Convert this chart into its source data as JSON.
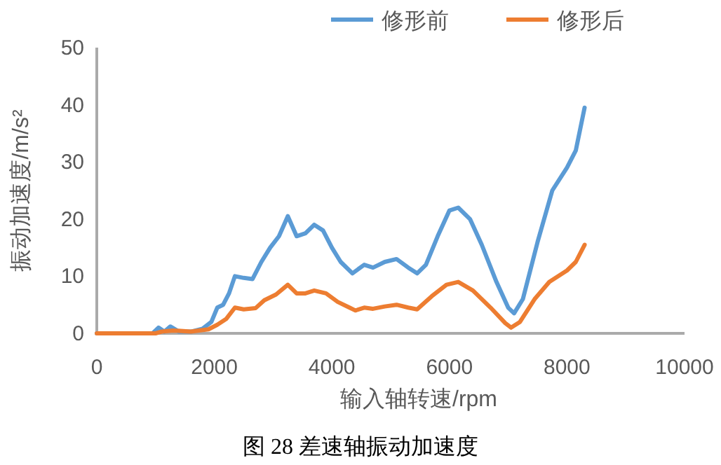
{
  "chart_data": {
    "type": "line",
    "title": "图 28 差速轴振动加速度",
    "xlabel": "输入轴转速/rpm",
    "ylabel": "振动加速度/m/s²",
    "xlim": [
      0,
      10000
    ],
    "xticks": [
      0,
      2000,
      4000,
      6000,
      8000,
      10000
    ],
    "ylim": [
      0,
      50
    ],
    "yticks": [
      0,
      10,
      20,
      30,
      40,
      50
    ],
    "grid": false,
    "legend": "top right",
    "marker": "none",
    "line_style": "solid",
    "series": [
      {
        "name": "修形前",
        "color": "#5b9bd5",
        "x": [
          0,
          800,
          950,
          1050,
          1150,
          1250,
          1400,
          1600,
          1800,
          1950,
          2050,
          2150,
          2250,
          2350,
          2500,
          2650,
          2800,
          2950,
          3100,
          3250,
          3400,
          3550,
          3700,
          3850,
          4000,
          4150,
          4350,
          4550,
          4700,
          4900,
          5100,
          5300,
          5450,
          5600,
          5800,
          6000,
          6150,
          6350,
          6550,
          6800,
          7000,
          7100,
          7250,
          7500,
          7750,
          8000,
          8150,
          8300
        ],
        "values": [
          0,
          0,
          0,
          1,
          0.3,
          1.2,
          0.3,
          0.3,
          0.8,
          2,
          4.5,
          5,
          7,
          10,
          9.7,
          9.5,
          12.5,
          15,
          17,
          20.5,
          17,
          17.5,
          19,
          18,
          15,
          12.5,
          10.5,
          12,
          11.5,
          12.5,
          13,
          11.5,
          10.5,
          12,
          17,
          21.5,
          22,
          20,
          15.5,
          9,
          4.5,
          3.5,
          6,
          16,
          25,
          29,
          32,
          39.5
        ]
      },
      {
        "name": "修形后",
        "color": "#ed7d31",
        "x": [
          0,
          1000,
          1100,
          1300,
          1600,
          1900,
          2050,
          2200,
          2350,
          2500,
          2700,
          2850,
          3050,
          3250,
          3400,
          3550,
          3700,
          3900,
          4100,
          4300,
          4400,
          4550,
          4700,
          4900,
          5100,
          5300,
          5450,
          5700,
          5950,
          6150,
          6400,
          6700,
          6950,
          7050,
          7200,
          7450,
          7700,
          8000,
          8150,
          8300
        ],
        "values": [
          0,
          0,
          0.3,
          0.5,
          0.3,
          0.7,
          1.5,
          2.5,
          4.5,
          4.2,
          4.4,
          5.8,
          6.8,
          8.5,
          7,
          7,
          7.5,
          7,
          5.5,
          4.5,
          4,
          4.5,
          4.3,
          4.7,
          5,
          4.5,
          4.2,
          6.5,
          8.5,
          9,
          7.5,
          4.5,
          1.8,
          1,
          2,
          6,
          9,
          11,
          12.5,
          15.5
        ]
      }
    ]
  }
}
